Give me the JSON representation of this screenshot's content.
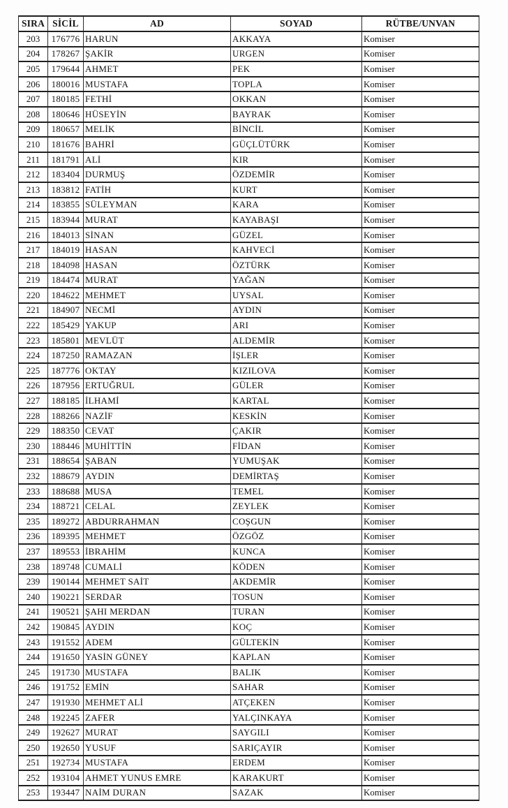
{
  "table": {
    "columns": [
      {
        "key": "sira",
        "label": "SIRA"
      },
      {
        "key": "sicil",
        "label": "SİCİL"
      },
      {
        "key": "ad",
        "label": "AD"
      },
      {
        "key": "soyad",
        "label": "SOYAD"
      },
      {
        "key": "rutbe",
        "label": "RÜTBE/UNVAN"
      }
    ],
    "rows": [
      {
        "sira": "203",
        "sicil": "176776",
        "ad": "HARUN",
        "soyad": "AKKAYA",
        "rutbe": "Komiser"
      },
      {
        "sira": "204",
        "sicil": "178267",
        "ad": "ŞAKİR",
        "soyad": "URGEN",
        "rutbe": "Komiser"
      },
      {
        "sira": "205",
        "sicil": "179644",
        "ad": "AHMET",
        "soyad": "PEK",
        "rutbe": "Komiser"
      },
      {
        "sira": "206",
        "sicil": "180016",
        "ad": "MUSTAFA",
        "soyad": "TOPLA",
        "rutbe": "Komiser"
      },
      {
        "sira": "207",
        "sicil": "180185",
        "ad": "FETHİ",
        "soyad": "OKKAN",
        "rutbe": "Komiser"
      },
      {
        "sira": "208",
        "sicil": "180646",
        "ad": "HÜSEYİN",
        "soyad": "BAYRAK",
        "rutbe": "Komiser"
      },
      {
        "sira": "209",
        "sicil": "180657",
        "ad": "MELİK",
        "soyad": "BİNCİL",
        "rutbe": "Komiser"
      },
      {
        "sira": "210",
        "sicil": "181676",
        "ad": "BAHRİ",
        "soyad": "GÜÇLÜTÜRK",
        "rutbe": "Komiser"
      },
      {
        "sira": "211",
        "sicil": "181791",
        "ad": "ALİ",
        "soyad": "KIR",
        "rutbe": "Komiser"
      },
      {
        "sira": "212",
        "sicil": "183404",
        "ad": "DURMUŞ",
        "soyad": "ÖZDEMİR",
        "rutbe": "Komiser"
      },
      {
        "sira": "213",
        "sicil": "183812",
        "ad": "FATİH",
        "soyad": "KURT",
        "rutbe": "Komiser"
      },
      {
        "sira": "214",
        "sicil": "183855",
        "ad": "SÜLEYMAN",
        "soyad": "KARA",
        "rutbe": "Komiser"
      },
      {
        "sira": "215",
        "sicil": "183944",
        "ad": "MURAT",
        "soyad": "KAYABAŞI",
        "rutbe": "Komiser"
      },
      {
        "sira": "216",
        "sicil": "184013",
        "ad": "SİNAN",
        "soyad": "GÜZEL",
        "rutbe": "Komiser"
      },
      {
        "sira": "217",
        "sicil": "184019",
        "ad": "HASAN",
        "soyad": "KAHVECİ",
        "rutbe": "Komiser"
      },
      {
        "sira": "218",
        "sicil": "184098",
        "ad": "HASAN",
        "soyad": "ÖZTÜRK",
        "rutbe": "Komiser"
      },
      {
        "sira": "219",
        "sicil": "184474",
        "ad": "MURAT",
        "soyad": "YAĞAN",
        "rutbe": "Komiser"
      },
      {
        "sira": "220",
        "sicil": "184622",
        "ad": "MEHMET",
        "soyad": "UYSAL",
        "rutbe": "Komiser"
      },
      {
        "sira": "221",
        "sicil": "184907",
        "ad": "NECMİ",
        "soyad": "AYDIN",
        "rutbe": "Komiser"
      },
      {
        "sira": "222",
        "sicil": "185429",
        "ad": "YAKUP",
        "soyad": "ARI",
        "rutbe": "Komiser"
      },
      {
        "sira": "223",
        "sicil": "185801",
        "ad": "MEVLÜT",
        "soyad": "ALDEMİR",
        "rutbe": "Komiser"
      },
      {
        "sira": "224",
        "sicil": "187250",
        "ad": "RAMAZAN",
        "soyad": "İŞLER",
        "rutbe": "Komiser"
      },
      {
        "sira": "225",
        "sicil": "187776",
        "ad": "OKTAY",
        "soyad": "KIZILOVA",
        "rutbe": "Komiser"
      },
      {
        "sira": "226",
        "sicil": "187956",
        "ad": "ERTUĞRUL",
        "soyad": "GÜLER",
        "rutbe": "Komiser"
      },
      {
        "sira": "227",
        "sicil": "188185",
        "ad": "İLHAMİ",
        "soyad": "KARTAL",
        "rutbe": "Komiser"
      },
      {
        "sira": "228",
        "sicil": "188266",
        "ad": "NAZİF",
        "soyad": "KESKİN",
        "rutbe": "Komiser"
      },
      {
        "sira": "229",
        "sicil": "188350",
        "ad": "CEVAT",
        "soyad": "ÇAKIR",
        "rutbe": "Komiser"
      },
      {
        "sira": "230",
        "sicil": "188446",
        "ad": "MUHİTTİN",
        "soyad": "FİDAN",
        "rutbe": "Komiser"
      },
      {
        "sira": "231",
        "sicil": "188654",
        "ad": "ŞABAN",
        "soyad": "YUMUŞAK",
        "rutbe": "Komiser"
      },
      {
        "sira": "232",
        "sicil": "188679",
        "ad": "AYDIN",
        "soyad": "DEMİRTAŞ",
        "rutbe": "Komiser"
      },
      {
        "sira": "233",
        "sicil": "188688",
        "ad": "MUSA",
        "soyad": "TEMEL",
        "rutbe": "Komiser"
      },
      {
        "sira": "234",
        "sicil": "188721",
        "ad": "CELAL",
        "soyad": "ZEYLEK",
        "rutbe": "Komiser"
      },
      {
        "sira": "235",
        "sicil": "189272",
        "ad": "ABDURRAHMAN",
        "soyad": "COŞGUN",
        "rutbe": "Komiser"
      },
      {
        "sira": "236",
        "sicil": "189395",
        "ad": "MEHMET",
        "soyad": "ÖZGÖZ",
        "rutbe": "Komiser"
      },
      {
        "sira": "237",
        "sicil": "189553",
        "ad": "İBRAHİM",
        "soyad": "KUNCA",
        "rutbe": "Komiser"
      },
      {
        "sira": "238",
        "sicil": "189748",
        "ad": "CUMALİ",
        "soyad": "KÖDEN",
        "rutbe": "Komiser"
      },
      {
        "sira": "239",
        "sicil": "190144",
        "ad": "MEHMET SAİT",
        "soyad": "AKDEMİR",
        "rutbe": "Komiser"
      },
      {
        "sira": "240",
        "sicil": "190221",
        "ad": "SERDAR",
        "soyad": "TOSUN",
        "rutbe": "Komiser"
      },
      {
        "sira": "241",
        "sicil": "190521",
        "ad": "ŞAHI MERDAN",
        "soyad": "TURAN",
        "rutbe": "Komiser"
      },
      {
        "sira": "242",
        "sicil": "190845",
        "ad": "AYDIN",
        "soyad": "KOÇ",
        "rutbe": "Komiser"
      },
      {
        "sira": "243",
        "sicil": "191552",
        "ad": "ADEM",
        "soyad": "GÜLTEKİN",
        "rutbe": "Komiser"
      },
      {
        "sira": "244",
        "sicil": "191650",
        "ad": "YASİN GÜNEY",
        "soyad": "KAPLAN",
        "rutbe": "Komiser"
      },
      {
        "sira": "245",
        "sicil": "191730",
        "ad": "MUSTAFA",
        "soyad": "BALIK",
        "rutbe": "Komiser"
      },
      {
        "sira": "246",
        "sicil": "191752",
        "ad": "EMİN",
        "soyad": "SAHAR",
        "rutbe": "Komiser"
      },
      {
        "sira": "247",
        "sicil": "191930",
        "ad": "MEHMET ALİ",
        "soyad": "ATÇEKEN",
        "rutbe": "Komiser"
      },
      {
        "sira": "248",
        "sicil": "192245",
        "ad": "ZAFER",
        "soyad": "YALÇINKAYA",
        "rutbe": "Komiser"
      },
      {
        "sira": "249",
        "sicil": "192627",
        "ad": "MURAT",
        "soyad": "SAYGILI",
        "rutbe": "Komiser"
      },
      {
        "sira": "250",
        "sicil": "192650",
        "ad": "YUSUF",
        "soyad": "SARIÇAYIR",
        "rutbe": "Komiser"
      },
      {
        "sira": "251",
        "sicil": "192734",
        "ad": "MUSTAFA",
        "soyad": "ERDEM",
        "rutbe": "Komiser"
      },
      {
        "sira": "252",
        "sicil": "193104",
        "ad": "AHMET YUNUS EMRE",
        "soyad": "KARAKURT",
        "rutbe": "Komiser"
      },
      {
        "sira": "253",
        "sicil": "193447",
        "ad": "NAİM DURAN",
        "soyad": "SAZAK",
        "rutbe": "Komiser"
      }
    ]
  }
}
